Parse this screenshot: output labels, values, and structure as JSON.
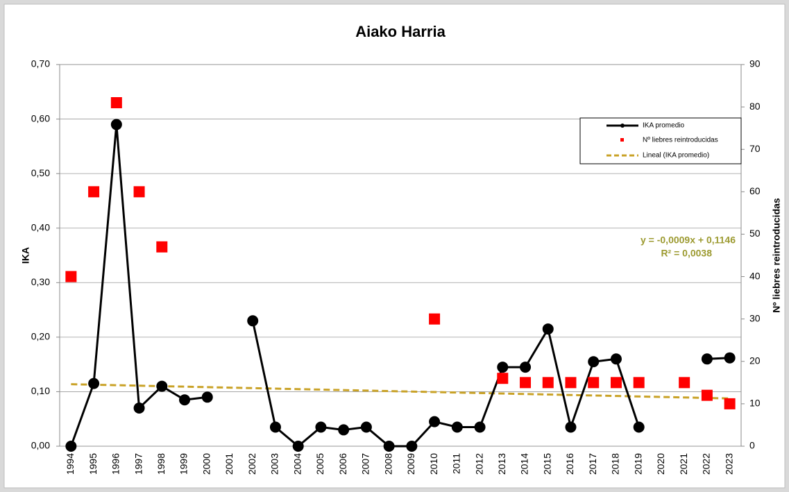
{
  "chart_data": {
    "type": "line",
    "title": "Aiako Harria",
    "y_label": "IKA",
    "y2_label": "Nº liebres reintroducidas",
    "categories": [
      "1994",
      "1995",
      "1996",
      "1997",
      "1998",
      "1999",
      "2000",
      "2001",
      "2002",
      "2003",
      "2004",
      "2005",
      "2006",
      "2007",
      "2008",
      "2009",
      "2010",
      "2011",
      "2012",
      "2013",
      "2014",
      "2015",
      "2016",
      "2017",
      "2018",
      "2019",
      "2020",
      "2021",
      "2022",
      "2023"
    ],
    "series": [
      {
        "name": "IKA promedio",
        "color": "#000000",
        "style": "line-marker",
        "values": [
          0.0,
          0.115,
          0.59,
          0.07,
          0.11,
          0.085,
          0.09,
          null,
          0.23,
          0.035,
          0.0,
          0.035,
          0.03,
          0.035,
          0.0,
          0.0,
          0.045,
          0.035,
          0.035,
          0.145,
          0.145,
          0.215,
          0.035,
          0.155,
          0.16,
          0.035,
          null,
          null,
          0.16,
          0.162
        ]
      },
      {
        "name": "Nº liebres reintroducidas",
        "color": "#ff0000",
        "style": "square",
        "axis": "y2",
        "values": [
          40,
          60,
          81,
          60,
          47,
          null,
          null,
          null,
          null,
          null,
          null,
          null,
          null,
          null,
          null,
          null,
          30,
          null,
          null,
          16,
          15,
          15,
          15,
          15,
          15,
          15,
          null,
          15,
          12,
          10
        ]
      }
    ],
    "trend": {
      "name": "Lineal (IKA promedio)",
      "color": "#c9a227",
      "slope": -0.0009,
      "intercept": 0.1146,
      "equation": "y = -0,0009x + 0,1146",
      "r2": "R² = 0,0038",
      "label_color": "#9c9a30"
    },
    "ylim": [
      0,
      0.7
    ],
    "yticks": [
      {
        "value": 0,
        "label": "0,00"
      },
      {
        "value": 0.1,
        "label": "0,10"
      },
      {
        "value": 0.2,
        "label": "0,20"
      },
      {
        "value": 0.3,
        "label": "0,30"
      },
      {
        "value": 0.4,
        "label": "0,40"
      },
      {
        "value": 0.5,
        "label": "0,50"
      },
      {
        "value": 0.6,
        "label": "0,60"
      },
      {
        "value": 0.7,
        "label": "0,70"
      }
    ],
    "y2lim": [
      0,
      90
    ],
    "y2ticks": [
      0,
      10,
      20,
      30,
      40,
      50,
      60,
      70,
      80,
      90
    ],
    "grid": true
  }
}
